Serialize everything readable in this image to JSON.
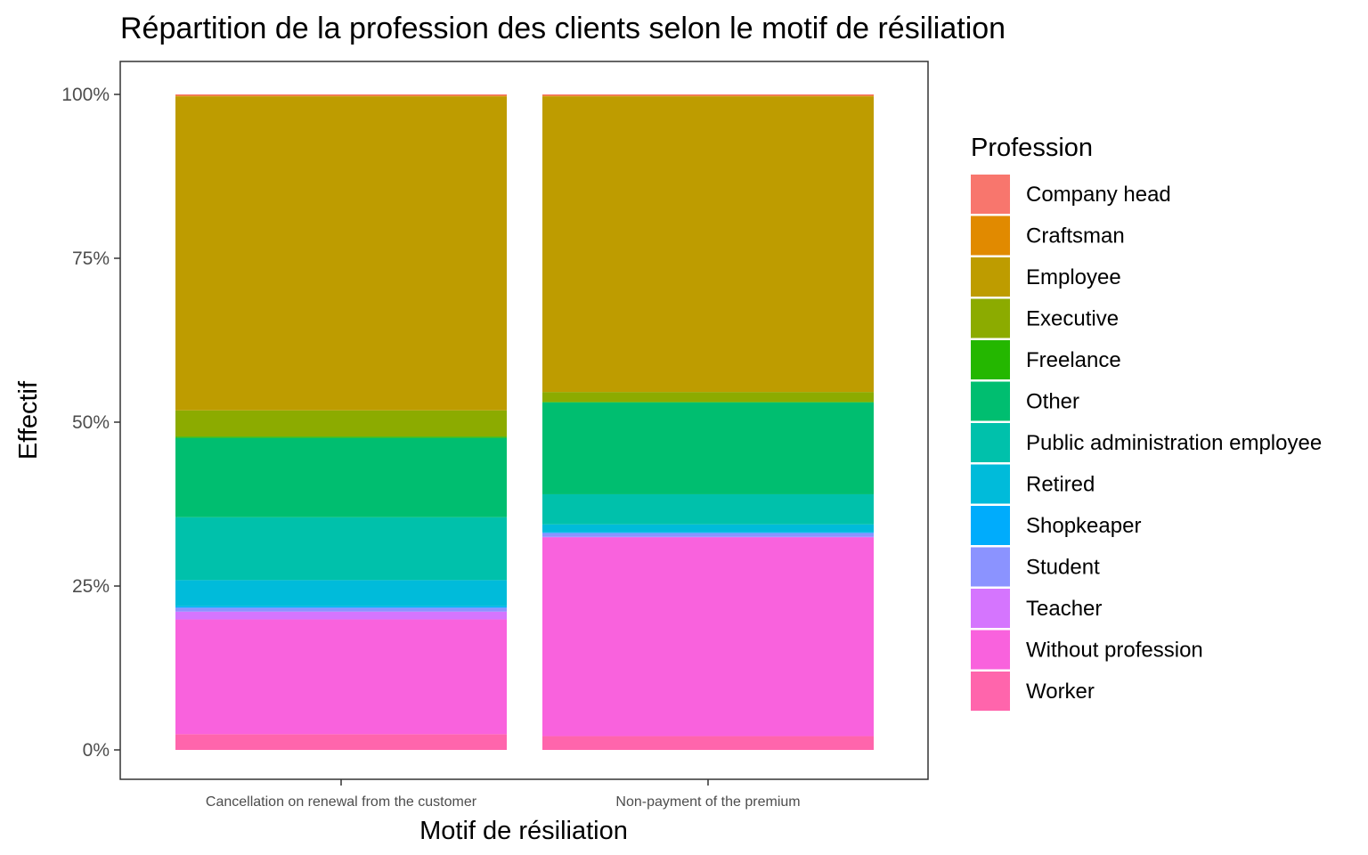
{
  "chart_data": {
    "type": "bar",
    "stacked": true,
    "normalized": true,
    "title": "Répartition de la profession des clients selon le motif de résiliation",
    "xlabel": "Motif de résiliation",
    "ylabel": "Effectif",
    "ylim": [
      0,
      1
    ],
    "y_ticks": [
      0,
      0.25,
      0.5,
      0.75,
      1.0
    ],
    "y_tick_labels": [
      "0%",
      "25%",
      "50%",
      "75%",
      "100%"
    ],
    "grid": false,
    "legend_title": "Profession",
    "legend_position": "right",
    "categories": [
      "Cancellation on renewal from the customer",
      "Non-payment of the premium"
    ],
    "series": [
      {
        "name": "Company head",
        "color": "#F8766D",
        "values": [
          0.002,
          0.002
        ]
      },
      {
        "name": "Craftsman",
        "color": "#E18A00",
        "values": [
          0.001,
          0.001
        ]
      },
      {
        "name": "Employee",
        "color": "#BE9C00",
        "values": [
          0.479,
          0.451
        ]
      },
      {
        "name": "Executive",
        "color": "#8CAB00",
        "values": [
          0.04,
          0.015
        ]
      },
      {
        "name": "Freelance",
        "color": "#24B700",
        "values": [
          0.002,
          0.001
        ]
      },
      {
        "name": "Other",
        "color": "#00BE70",
        "values": [
          0.121,
          0.14
        ]
      },
      {
        "name": "Public administration employee",
        "color": "#00C1AB",
        "values": [
          0.096,
          0.046
        ]
      },
      {
        "name": "Retired",
        "color": "#00BBDA",
        "values": [
          0.04,
          0.012
        ]
      },
      {
        "name": "Shopkeaper",
        "color": "#00ACFC",
        "values": [
          0.002,
          0.001
        ]
      },
      {
        "name": "Student",
        "color": "#8B93FF",
        "values": [
          0.006,
          0.006
        ]
      },
      {
        "name": "Teacher",
        "color": "#D575FE",
        "values": [
          0.012,
          0.001
        ]
      },
      {
        "name": "Without profession",
        "color": "#F962DD",
        "values": [
          0.175,
          0.303
        ]
      },
      {
        "name": "Worker",
        "color": "#FF65AC",
        "values": [
          0.024,
          0.021
        ]
      }
    ]
  }
}
